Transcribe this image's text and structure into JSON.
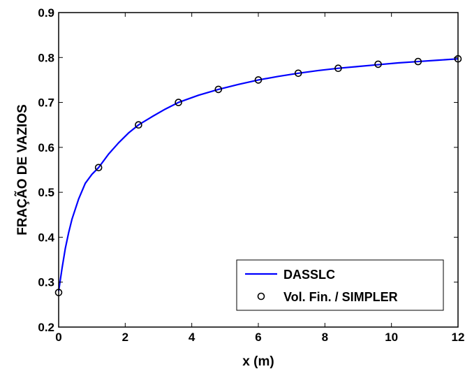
{
  "chart_data": {
    "type": "line",
    "xlabel": "x (m)",
    "ylabel": "FRAÇÃO DE VAZIOS",
    "xlim": [
      0,
      12
    ],
    "ylim": [
      0.2,
      0.9
    ],
    "x_ticks": [
      "0",
      "2",
      "4",
      "6",
      "8",
      "10",
      "12"
    ],
    "y_ticks": [
      "0.2",
      "0.3",
      "0.4",
      "0.5",
      "0.6",
      "0.7",
      "0.8",
      "0.9"
    ],
    "grid": false,
    "legend_position": "bottom-right",
    "series": [
      {
        "name": "DASSLC",
        "style": "line",
        "color": "#0000ff",
        "x": [
          0,
          0.1,
          0.2,
          0.3,
          0.4,
          0.6,
          0.8,
          1.0,
          1.2,
          1.5,
          1.8,
          2.1,
          2.4,
          2.8,
          3.2,
          3.6,
          4.2,
          4.8,
          5.4,
          6.0,
          6.6,
          7.2,
          7.8,
          8.4,
          9.0,
          9.6,
          10.2,
          10.8,
          11.4,
          12.0
        ],
        "y": [
          0.28,
          0.33,
          0.375,
          0.41,
          0.44,
          0.485,
          0.52,
          0.54,
          0.555,
          0.585,
          0.61,
          0.632,
          0.65,
          0.668,
          0.685,
          0.7,
          0.716,
          0.729,
          0.74,
          0.75,
          0.758,
          0.765,
          0.771,
          0.776,
          0.78,
          0.784,
          0.788,
          0.791,
          0.794,
          0.797
        ]
      },
      {
        "name": "Vol. Fin. / SIMPLER",
        "style": "marker",
        "color": "#000000",
        "x": [
          0,
          1.2,
          2.4,
          3.6,
          4.8,
          6.0,
          7.2,
          8.4,
          9.6,
          10.8,
          12.0
        ],
        "y": [
          0.277,
          0.555,
          0.65,
          0.7,
          0.729,
          0.75,
          0.765,
          0.776,
          0.785,
          0.791,
          0.797
        ]
      }
    ]
  }
}
